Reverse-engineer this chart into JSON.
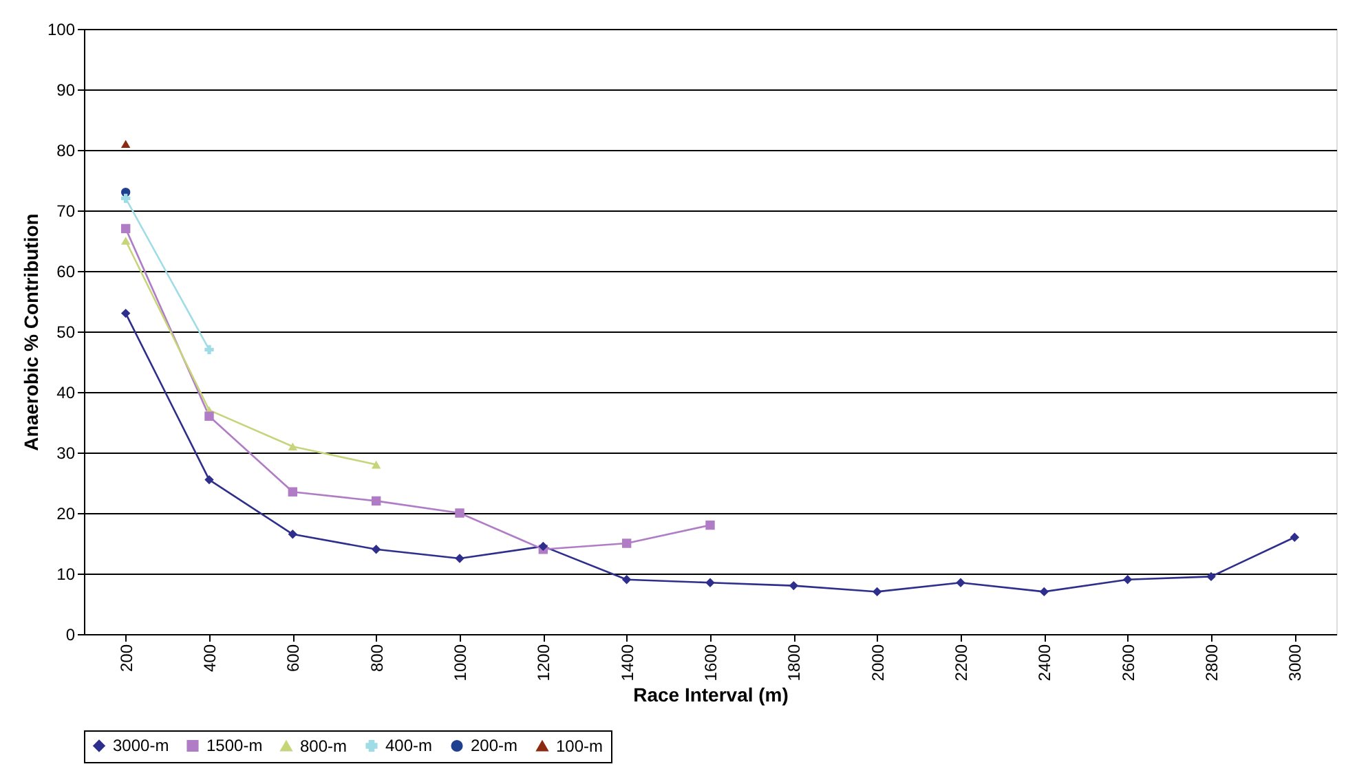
{
  "chart_data": {
    "type": "line",
    "xlabel": "Race Interval (m)",
    "ylabel": "Anaerobic % Contribution",
    "categories": [
      "200",
      "400",
      "600",
      "800",
      "1000",
      "1200",
      "1400",
      "1600",
      "1800",
      "2000",
      "2200",
      "2400",
      "2600",
      "2800",
      "3000"
    ],
    "series": [
      {
        "name": "3000-m",
        "color": "#2e2e8c",
        "marker": "diamond",
        "values": [
          53,
          25.5,
          16.5,
          14,
          12.5,
          14.5,
          9,
          8.5,
          8,
          7,
          8.5,
          7,
          9,
          9.5,
          16
        ]
      },
      {
        "name": "1500-m",
        "color": "#b07cc6",
        "marker": "square",
        "values": [
          67,
          36,
          23.5,
          22,
          20,
          14,
          15,
          18,
          null,
          null,
          null,
          null,
          null,
          null,
          null
        ]
      },
      {
        "name": "800-m",
        "color": "#c8d47a",
        "marker": "triangle",
        "values": [
          65,
          37,
          31,
          28,
          null,
          null,
          null,
          null,
          null,
          null,
          null,
          null,
          null,
          null,
          null
        ]
      },
      {
        "name": "400-m",
        "color": "#a0dce6",
        "marker": "cross",
        "values": [
          72,
          47,
          null,
          null,
          null,
          null,
          null,
          null,
          null,
          null,
          null,
          null,
          null,
          null,
          null
        ]
      },
      {
        "name": "200-m",
        "color": "#1f3f8f",
        "marker": "circle",
        "values": [
          73,
          null,
          null,
          null,
          null,
          null,
          null,
          null,
          null,
          null,
          null,
          null,
          null,
          null,
          null
        ]
      },
      {
        "name": "100-m",
        "color": "#8b2a10",
        "marker": "triangle",
        "values": [
          81,
          null,
          null,
          null,
          null,
          null,
          null,
          null,
          null,
          null,
          null,
          null,
          null,
          null,
          null
        ]
      }
    ],
    "ylim": [
      0,
      100
    ],
    "yticks": [
      0,
      10,
      20,
      30,
      40,
      50,
      60,
      70,
      80,
      90,
      100
    ],
    "grid": "y",
    "legend": "bottom",
    "line_style": "solid"
  }
}
